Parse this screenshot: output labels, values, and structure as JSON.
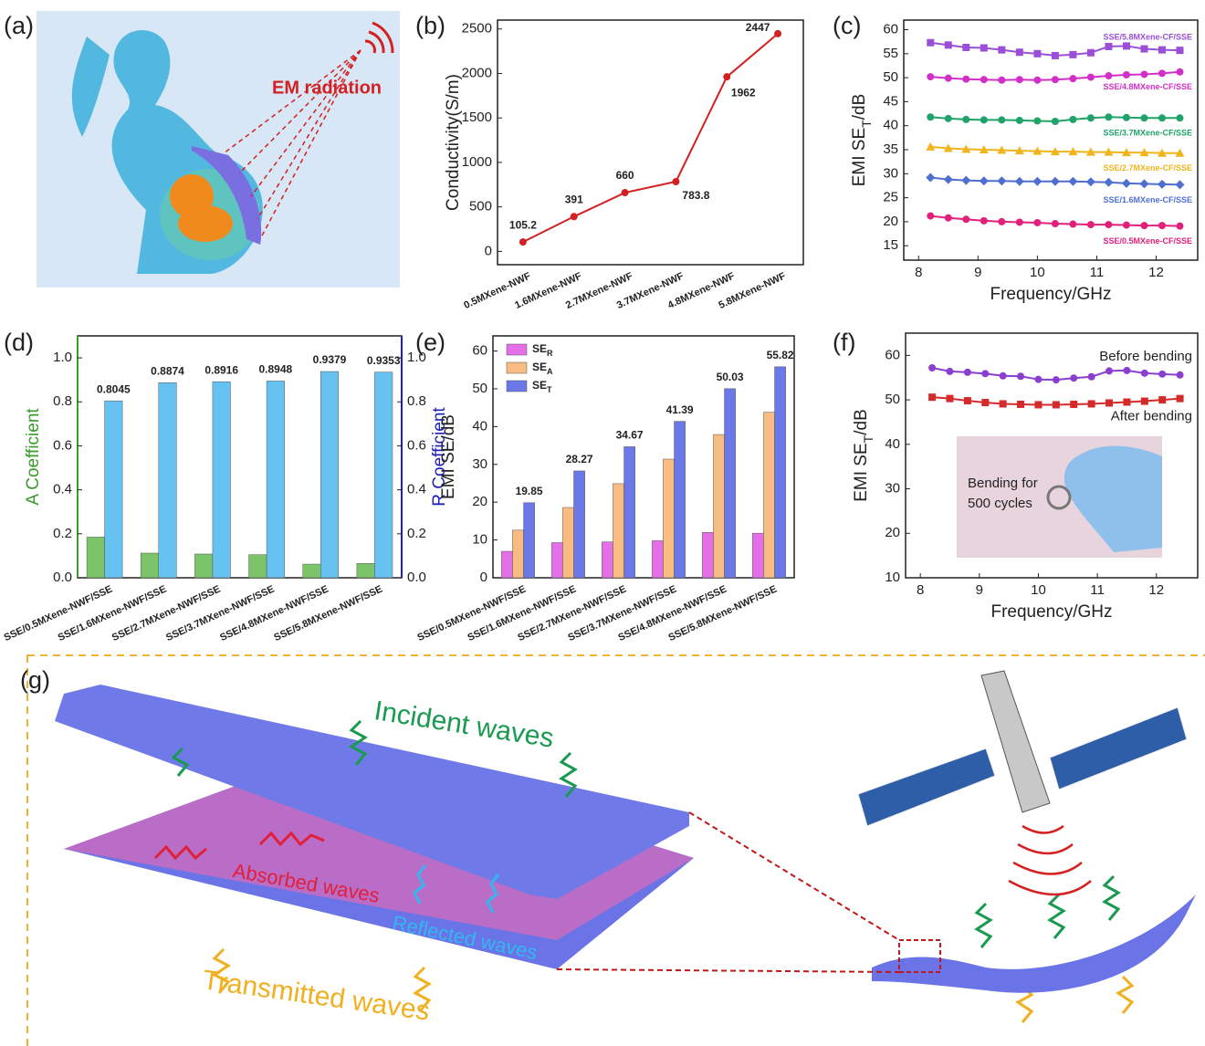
{
  "panel_a": {
    "label": "(a)",
    "text": "EM radiation"
  },
  "panel_g": {
    "label": "(g)",
    "incident": "Incident waves",
    "absorbed": "Absorbed waves",
    "reflected": "Reflected waves",
    "transmitted": "Transmitted waves"
  },
  "chart_data": [
    {
      "type": "line",
      "panel_label": "(b)",
      "ylabel": "Conductivity(S/m)",
      "categories": [
        "0.5MXene-NWF",
        "1.6MXene-NWF",
        "2.7MXene-NWF",
        "3.7MXene-NWF",
        "4.8MXene-NWF",
        "5.8MXene-NWF"
      ],
      "values": [
        105.2,
        391,
        660,
        783.8,
        1962,
        2447
      ],
      "color": "#d42020",
      "data_labels": true,
      "ylim": [
        -150,
        2600
      ],
      "yticks": [
        0,
        500,
        1000,
        1500,
        2000,
        2500
      ]
    },
    {
      "type": "line",
      "panel_label": "(c)",
      "xlabel": "Frequency/GHz",
      "ylabel": [
        "EMI SE",
        "T",
        "/dB"
      ],
      "x": [
        8.2,
        8.5,
        8.8,
        9.1,
        9.4,
        9.7,
        10,
        10.3,
        10.6,
        10.9,
        11.2,
        11.5,
        11.8,
        12.1,
        12.4
      ],
      "series": [
        {
          "name": "SSE/5.8MXene-CF/SSE",
          "color": "#9b4fd6",
          "marker": "square",
          "values": [
            57.3,
            56.8,
            56.3,
            56.2,
            55.8,
            55.3,
            55,
            54.6,
            54.8,
            55.2,
            56.5,
            56.6,
            56,
            55.8,
            55.7
          ]
        },
        {
          "name": "SSE/4.8MXene-CF/SSE",
          "color": "#d22fc8",
          "marker": "circle",
          "values": [
            50.2,
            49.9,
            49.7,
            49.6,
            49.5,
            49.6,
            49.5,
            49.6,
            49.8,
            50.1,
            50.4,
            50.6,
            50.7,
            50.9,
            51.2
          ]
        },
        {
          "name": "SSE/3.7MXene-CF/SSE",
          "color": "#1fa36a",
          "marker": "circle",
          "values": [
            41.8,
            41.5,
            41.3,
            41.2,
            41.2,
            41.1,
            41,
            40.9,
            41.3,
            41.6,
            41.8,
            41.7,
            41.6,
            41.6,
            41.6
          ]
        },
        {
          "name": "SSE/2.7MXene-CF/SSE",
          "color": "#f0b41c",
          "marker": "triangle",
          "values": [
            35.6,
            35.3,
            35.1,
            35,
            34.9,
            34.8,
            34.7,
            34.6,
            34.6,
            34.5,
            34.5,
            34.4,
            34.4,
            34.3,
            34.3
          ]
        },
        {
          "name": "SSE/1.6MXene-CF/SSE",
          "color": "#4f6fd0",
          "marker": "diamond",
          "values": [
            29.2,
            28.8,
            28.6,
            28.5,
            28.5,
            28.4,
            28.4,
            28.4,
            28.4,
            28.3,
            28.2,
            28,
            27.9,
            27.8,
            27.7
          ]
        },
        {
          "name": "SSE/0.5MXene-CF/SSE",
          "color": "#e0207a",
          "marker": "circle",
          "values": [
            21.2,
            20.8,
            20.5,
            20.2,
            20,
            19.9,
            19.8,
            19.6,
            19.5,
            19.4,
            19.4,
            19.3,
            19.2,
            19.2,
            19.1
          ]
        }
      ],
      "xlim": [
        7.75,
        12.7
      ],
      "xticks": [
        8,
        9,
        10,
        11,
        12
      ],
      "ylim": [
        12,
        62
      ],
      "yticks": [
        15,
        20,
        25,
        30,
        35,
        40,
        45,
        50,
        55,
        60
      ]
    },
    {
      "type": "bar",
      "panel_label": "(d)",
      "ylabel": "A Coefficient",
      "y2label": "R Coefficient",
      "categories": [
        "SSE/0.5MXene-NWF/SSE",
        "SSE/1.6MXene-NWF/SSE",
        "SSE/2.7MXene-NWF/SSE",
        "SSE/3.7MXene-NWF/SSE",
        "SSE/4.8MXene-NWF/SSE",
        "SSE/5.8MXene-NWF/SSE"
      ],
      "series": [
        {
          "color": "#7cc46a",
          "values": [
            0.185,
            0.112,
            0.108,
            0.105,
            0.062,
            0.065
          ]
        },
        {
          "color": "#66c2f0",
          "axis": "y2",
          "data_labels": true,
          "values": [
            0.8045,
            0.8874,
            0.8916,
            0.8948,
            0.9379,
            0.9353
          ]
        }
      ],
      "ylim": [
        0,
        1.1
      ],
      "yticks": [
        {
          "value": 0,
          "label": "0.0"
        },
        {
          "value": 0.2,
          "label": "0.2"
        },
        {
          "value": 0.4,
          "label": "0.4"
        },
        {
          "value": 0.6,
          "label": "0.6"
        },
        {
          "value": 0.8,
          "label": "0.8"
        },
        {
          "value": 1,
          "label": "1.0"
        }
      ],
      "y2lim": [
        0,
        1.1
      ],
      "y2ticks": [
        {
          "value": 0,
          "label": "0.0"
        },
        {
          "value": 0.2,
          "label": "0.2"
        },
        {
          "value": 0.4,
          "label": "0.4"
        },
        {
          "value": 0.6,
          "label": "0.6"
        },
        {
          "value": 0.8,
          "label": "0.8"
        },
        {
          "value": 1,
          "label": "1.0"
        }
      ]
    },
    {
      "type": "bar",
      "panel_label": "(e)",
      "ylabel": "EMI SE/dB",
      "legend": "upper left",
      "categories": [
        "SSE/0.5MXene-NWF/SSE",
        "SSE/1.6MXene-NWF/SSE",
        "SSE/2.7MXene-NWF/SSE",
        "SSE/3.7MXene-NWF/SSE",
        "SSE/4.8MXene-NWF/SSE",
        "SSE/5.8MXene-NWF/SSE"
      ],
      "series": [
        {
          "name": "SE",
          "subscript": "R",
          "color": "#e46fe8",
          "values": [
            7,
            9.3,
            9.5,
            9.8,
            12,
            11.8
          ]
        },
        {
          "name": "SE",
          "subscript": "A",
          "color": "#f8bc82",
          "values": [
            12.6,
            18.6,
            24.9,
            31.4,
            37.9,
            43.8
          ]
        },
        {
          "name": "SE",
          "subscript": "T",
          "color": "#6a78e8",
          "data_labels": true,
          "values": [
            19.85,
            28.27,
            34.67,
            41.39,
            50.03,
            55.82
          ]
        }
      ],
      "ylim": [
        0,
        64
      ],
      "yticks": [
        0,
        10,
        20,
        30,
        40,
        50,
        60
      ]
    },
    {
      "type": "line",
      "panel_label": "(f)",
      "xlabel": "Frequency/GHz",
      "ylabel": [
        "EMI SE",
        "T",
        "/dB"
      ],
      "annotation": [
        "Bending for",
        "500 cycles"
      ],
      "x": [
        8.2,
        8.5,
        8.8,
        9.1,
        9.4,
        9.7,
        10,
        10.3,
        10.6,
        10.9,
        11.2,
        11.5,
        11.8,
        12.1,
        12.4
      ],
      "series": [
        {
          "name": "Before bending",
          "color": "#8a3fd0",
          "marker": "circle",
          "values": [
            57.2,
            56.4,
            56.2,
            55.9,
            55.4,
            55.3,
            54.6,
            54.5,
            54.9,
            55.2,
            56.5,
            56.6,
            56,
            55.8,
            55.6
          ]
        },
        {
          "name": "After bending",
          "color": "#d42a2a",
          "marker": "square",
          "values": [
            50.6,
            50.3,
            49.8,
            49.4,
            49.1,
            49,
            48.9,
            48.9,
            49,
            49.1,
            49.3,
            49.5,
            49.7,
            50,
            50.3
          ]
        }
      ],
      "xlim": [
        7.75,
        12.7
      ],
      "xticks": [
        8,
        9,
        10,
        11,
        12
      ],
      "ylim": [
        10,
        65
      ],
      "yticks": [
        10,
        20,
        30,
        40,
        50,
        60
      ]
    }
  ]
}
